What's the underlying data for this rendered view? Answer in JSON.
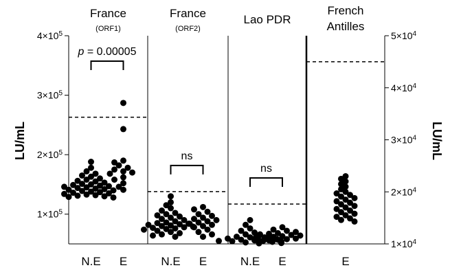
{
  "chart_data": {
    "type": "scatter",
    "y_left": {
      "label": "LU/mL",
      "range": [
        50000,
        400000
      ],
      "ticks": [
        {
          "value": 100000,
          "mantissa": "1×10",
          "exp": "5"
        },
        {
          "value": 200000,
          "mantissa": "2×10",
          "exp": "5"
        },
        {
          "value": 300000,
          "mantissa": "3×10",
          "exp": "5"
        },
        {
          "value": 400000,
          "mantissa": "4×10",
          "exp": "5"
        }
      ]
    },
    "y_right": {
      "label": "LU/mL",
      "range": [
        10000,
        50000
      ],
      "ticks": [
        {
          "value": 10000,
          "mantissa": "1×10",
          "exp": "4"
        },
        {
          "value": 20000,
          "mantissa": "2×10",
          "exp": "4"
        },
        {
          "value": 30000,
          "mantissa": "3×10",
          "exp": "4"
        },
        {
          "value": 40000,
          "mantissa": "4×10",
          "exp": "4"
        },
        {
          "value": 50000,
          "mantissa": "5×10",
          "exp": "4"
        }
      ]
    },
    "panels": [
      {
        "title": "France",
        "subtitle": "(ORF1)",
        "axis": "left",
        "threshold": 263000,
        "groups": [
          {
            "label": "N.E",
            "values": [
              188000,
              178000,
              172000,
              168000,
              165000,
              163000,
              160000,
              158000,
              156000,
              155000,
              153000,
              151000,
              150000,
              149000,
              148000,
              147000,
              146000,
              145000,
              144000,
              143000,
              142000,
              141000,
              140000,
              139000,
              138000,
              137000,
              136000,
              135000,
              134000,
              133000,
              132000,
              131000,
              130000,
              129000,
              128000
            ]
          },
          {
            "label": "E",
            "values": [
              287000,
              243000,
              190000,
              187000,
              182000,
              178000,
              175000,
              172000,
              170000,
              168000,
              162000,
              158000,
              152000,
              146000,
              141000
            ]
          }
        ],
        "comparison": {
          "text_prefix": "p",
          "text_value": " = 0.00005"
        }
      },
      {
        "title": "France",
        "subtitle": "(ORF2)",
        "axis": "left",
        "threshold": 138000,
        "groups": [
          {
            "label": "N.E",
            "values": [
              130000,
              120000,
              115000,
              110000,
              106000,
              102000,
              100000,
              98000,
              96000,
              94000,
              92000,
              90000,
              88000,
              86000,
              85000,
              84000,
              83000,
              82000,
              81000,
              80000,
              79000,
              78000,
              77000,
              76000,
              75000,
              74000,
              72000,
              70000,
              68000,
              66000,
              64000,
              62000
            ]
          },
          {
            "label": "E",
            "values": [
              112000,
              108000,
              104000,
              100000,
              97000,
              94000,
              92000,
              90000,
              88000,
              86000,
              84000,
              82000,
              80000,
              78000,
              74000,
              70000,
              66000,
              62000
            ]
          }
        ],
        "comparison": {
          "text_prefix": "",
          "text_value": "ns"
        }
      },
      {
        "title": "Lao PDR",
        "subtitle": "",
        "axis": "left",
        "threshold": 117000,
        "groups": [
          {
            "label": "N.E",
            "values": [
              90000,
              82000,
              76000,
              72000,
              69000,
              66000,
              64000,
              62000,
              61000,
              60000,
              59000,
              58000,
              57000,
              56000,
              55500,
              55000,
              54500,
              54000,
              53500,
              53000,
              52500,
              52000,
              51500,
              51000
            ]
          },
          {
            "label": "E",
            "values": [
              78000,
              74000,
              72000,
              70000,
              68000,
              67000,
              66000,
              65000,
              64000,
              63000,
              62000,
              61000,
              60000,
              59000,
              58000,
              57000,
              56000,
              55000
            ]
          }
        ],
        "comparison": {
          "text_prefix": "",
          "text_value": "ns"
        }
      },
      {
        "title": "French",
        "subtitle": "Antilles",
        "axis": "right",
        "threshold": 45000,
        "groups": [
          {
            "label": "E",
            "values": [
              23000,
              22500,
              22000,
              21500,
              21000,
              20500,
              20000,
              19700,
              19400,
              19100,
              18800,
              18500,
              18200,
              17900,
              17600,
              17300,
              17000,
              16700,
              16400,
              16100,
              15800,
              15500,
              15200,
              14900,
              14600,
              14300
            ]
          }
        ],
        "comparison": null
      }
    ]
  }
}
